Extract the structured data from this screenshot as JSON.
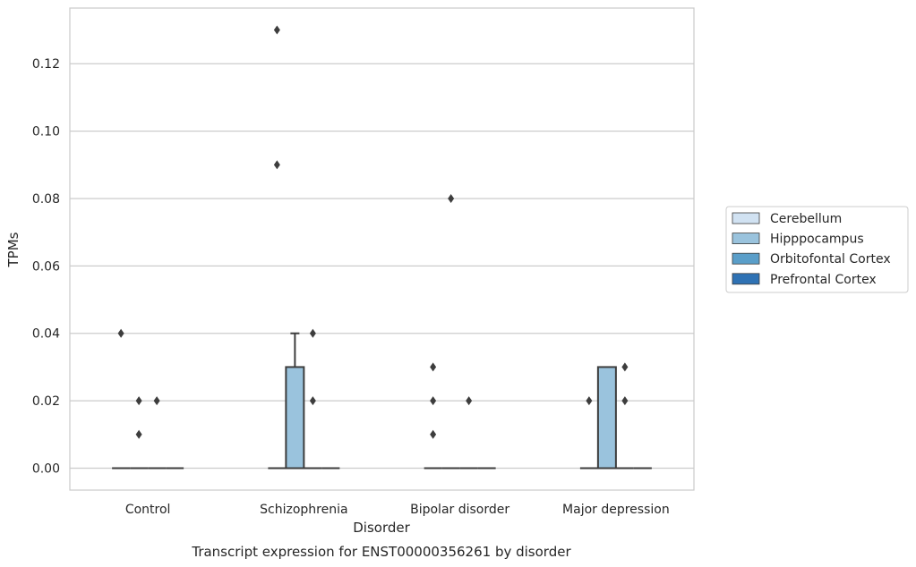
{
  "chart_data": {
    "type": "box",
    "title": "",
    "caption": "Transcript expression for ENST00000356261 by disorder",
    "xlabel": "Disorder",
    "ylabel": "TPMs",
    "categories": [
      "Control",
      "Schizophrenia",
      "Bipolar disorder",
      "Major depression"
    ],
    "ylim": [
      -0.0065,
      0.1365
    ],
    "yticks": [
      0.0,
      0.02,
      0.04,
      0.06,
      0.08,
      0.1,
      0.12
    ],
    "ytick_labels": [
      "0.00",
      "0.02",
      "0.04",
      "0.06",
      "0.08",
      "0.10",
      "0.12"
    ],
    "grid": true,
    "legend": {
      "placement": "right-center"
    },
    "series": [
      {
        "name": "Cerebellum",
        "color": "#d1e2f2",
        "boxes": [
          {
            "q1": 0,
            "median": 0,
            "q3": 0,
            "whisker_low": 0,
            "whisker_high": 0,
            "outliers": [
              0.04
            ]
          },
          {
            "q1": 0,
            "median": 0,
            "q3": 0,
            "whisker_low": 0,
            "whisker_high": 0,
            "outliers": [
              0.13,
              0.09
            ]
          },
          {
            "q1": 0,
            "median": 0,
            "q3": 0,
            "whisker_low": 0,
            "whisker_high": 0,
            "outliers": [
              0.03,
              0.02,
              0.01
            ]
          },
          {
            "q1": 0,
            "median": 0,
            "q3": 0,
            "whisker_low": 0,
            "whisker_high": 0,
            "outliers": [
              0.02
            ]
          }
        ]
      },
      {
        "name": "Hipppocampus",
        "color": "#9ac3dd",
        "boxes": [
          {
            "q1": 0,
            "median": 0,
            "q3": 0,
            "whisker_low": 0,
            "whisker_high": 0,
            "outliers": [
              0.02,
              0.01
            ]
          },
          {
            "q1": 0,
            "median": 0,
            "q3": 0.03,
            "whisker_low": 0,
            "whisker_high": 0.04,
            "outliers": []
          },
          {
            "q1": 0,
            "median": 0,
            "q3": 0,
            "whisker_low": 0,
            "whisker_high": 0,
            "outliers": [
              0.08
            ]
          },
          {
            "q1": 0,
            "median": 0,
            "q3": 0.03,
            "whisker_low": 0,
            "whisker_high": 0.03,
            "outliers": []
          }
        ]
      },
      {
        "name": "Orbitofontal Cortex",
        "color": "#5a9ec9",
        "boxes": [
          {
            "q1": 0,
            "median": 0,
            "q3": 0,
            "whisker_low": 0,
            "whisker_high": 0,
            "outliers": [
              0.02
            ]
          },
          {
            "q1": 0,
            "median": 0,
            "q3": 0,
            "whisker_low": 0,
            "whisker_high": 0,
            "outliers": [
              0.04,
              0.02
            ]
          },
          {
            "q1": 0,
            "median": 0,
            "q3": 0,
            "whisker_low": 0,
            "whisker_high": 0,
            "outliers": [
              0.02
            ]
          },
          {
            "q1": 0,
            "median": 0,
            "q3": 0,
            "whisker_low": 0,
            "whisker_high": 0,
            "outliers": [
              0.03,
              0.02
            ]
          }
        ]
      },
      {
        "name": "Prefrontal Cortex",
        "color": "#2f72b4",
        "boxes": [
          {
            "q1": 0,
            "median": 0,
            "q3": 0,
            "whisker_low": 0,
            "whisker_high": 0,
            "outliers": []
          },
          {
            "q1": 0,
            "median": 0,
            "q3": 0,
            "whisker_low": 0,
            "whisker_high": 0,
            "outliers": []
          },
          {
            "q1": 0,
            "median": 0,
            "q3": 0,
            "whisker_low": 0,
            "whisker_high": 0,
            "outliers": []
          },
          {
            "q1": 0,
            "median": 0,
            "q3": 0,
            "whisker_low": 0,
            "whisker_high": 0,
            "outliers": []
          }
        ]
      }
    ]
  }
}
